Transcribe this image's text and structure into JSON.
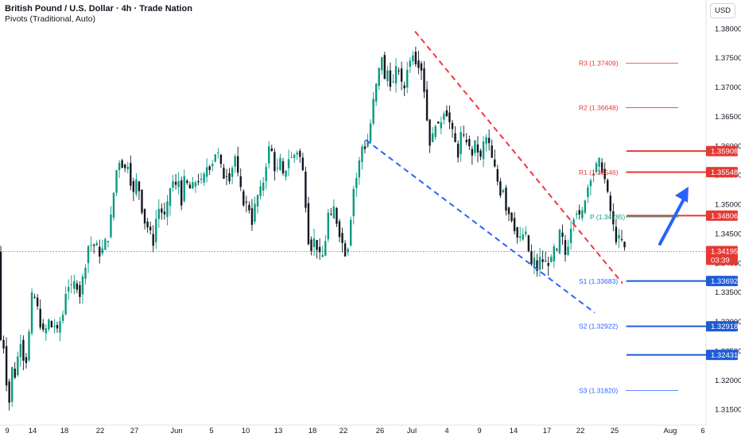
{
  "header": {
    "title": "British Pound / U.S. Dollar · 4h · Trade Nation",
    "indicator": "Pivots (Traditional, Auto)"
  },
  "currency_button": "USD",
  "colors": {
    "up": "#089981",
    "down": "#131722",
    "red_line": "#e53935",
    "blue_line": "#1e5bd6",
    "dashed_red": "#f23645",
    "dashed_blue": "#2962ff",
    "arrow": "#2962ff",
    "pivot_red_label": "#e53935",
    "pivot_blue_label": "#2962ff"
  },
  "chart_data": {
    "type": "candlestick",
    "symbol": "GBPUSD",
    "timeframe": "4h",
    "y_axis": {
      "min": 1.313,
      "max": 1.3835,
      "ticks": [
        "1.38000",
        "1.37500",
        "1.37000",
        "1.36500",
        "1.36000",
        "1.35500",
        "1.35000",
        "1.34500",
        "1.34000",
        "1.33500",
        "1.33000",
        "1.32500",
        "1.32000",
        "1.31500"
      ]
    },
    "x_axis": {
      "labels": [
        "9",
        "14",
        "18",
        "22",
        "27",
        "Jun",
        "5",
        "10",
        "13",
        "18",
        "22",
        "26",
        "Jul",
        "4",
        "9",
        "14",
        "17",
        "22",
        "25",
        "Aug",
        "6"
      ]
    },
    "price_path": [
      [
        0,
        1.322
      ],
      [
        4,
        1.329
      ],
      [
        8,
        1.3235
      ],
      [
        11,
        1.3175
      ],
      [
        14,
        1.316
      ],
      [
        18,
        1.324
      ],
      [
        22,
        1.319
      ],
      [
        26,
        1.3285
      ],
      [
        30,
        1.3245
      ],
      [
        34,
        1.3225
      ],
      [
        38,
        1.3275
      ],
      [
        42,
        1.3345
      ],
      [
        46,
        1.334
      ],
      [
        50,
        1.3315
      ],
      [
        54,
        1.3285
      ],
      [
        58,
        1.3275
      ],
      [
        62,
        1.3305
      ],
      [
        66,
        1.329
      ],
      [
        70,
        1.3295
      ],
      [
        74,
        1.328
      ],
      [
        78,
        1.3305
      ],
      [
        82,
        1.3315
      ],
      [
        86,
        1.3375
      ],
      [
        90,
        1.335
      ],
      [
        94,
        1.3365
      ],
      [
        98,
        1.3365
      ],
      [
        102,
        1.3345
      ],
      [
        106,
        1.3375
      ],
      [
        110,
        1.3405
      ],
      [
        114,
        1.344
      ],
      [
        118,
        1.3425
      ],
      [
        122,
        1.3435
      ],
      [
        126,
        1.3415
      ],
      [
        130,
        1.342
      ],
      [
        134,
        1.3435
      ],
      [
        138,
        1.3445
      ],
      [
        142,
        1.3485
      ],
      [
        146,
        1.3535
      ],
      [
        150,
        1.3575
      ],
      [
        154,
        1.3575
      ],
      [
        158,
        1.3555
      ],
      [
        162,
        1.3575
      ],
      [
        166,
        1.354
      ],
      [
        170,
        1.3515
      ],
      [
        174,
        1.3545
      ],
      [
        178,
        1.3515
      ],
      [
        182,
        1.3475
      ],
      [
        186,
        1.3465
      ],
      [
        190,
        1.3455
      ],
      [
        194,
        1.343
      ],
      [
        198,
        1.3475
      ],
      [
        202,
        1.3495
      ],
      [
        206,
        1.3485
      ],
      [
        210,
        1.3475
      ],
      [
        214,
        1.3515
      ],
      [
        218,
        1.3545
      ],
      [
        222,
        1.3525
      ],
      [
        226,
        1.3545
      ],
      [
        230,
        1.3505
      ],
      [
        234,
        1.3545
      ],
      [
        238,
        1.353
      ],
      [
        242,
        1.3525
      ],
      [
        246,
        1.3535
      ],
      [
        250,
        1.3545
      ],
      [
        254,
        1.3535
      ],
      [
        258,
        1.3545
      ],
      [
        262,
        1.3565
      ],
      [
        266,
        1.3565
      ],
      [
        270,
        1.3575
      ],
      [
        274,
        1.3595
      ],
      [
        278,
        1.3575
      ],
      [
        282,
        1.3545
      ],
      [
        286,
        1.3555
      ],
      [
        290,
        1.3545
      ],
      [
        294,
        1.3565
      ],
      [
        298,
        1.3585
      ],
      [
        302,
        1.3535
      ],
      [
        306,
        1.3515
      ],
      [
        310,
        1.3495
      ],
      [
        314,
        1.3505
      ],
      [
        318,
        1.3465
      ],
      [
        322,
        1.3495
      ],
      [
        326,
        1.3515
      ],
      [
        330,
        1.3525
      ],
      [
        334,
        1.3545
      ],
      [
        338,
        1.3585
      ],
      [
        342,
        1.3605
      ],
      [
        346,
        1.3565
      ],
      [
        350,
        1.3555
      ],
      [
        354,
        1.3575
      ],
      [
        358,
        1.3545
      ],
      [
        362,
        1.3565
      ],
      [
        366,
        1.3585
      ],
      [
        370,
        1.3575
      ],
      [
        374,
        1.3595
      ],
      [
        378,
        1.3585
      ],
      [
        382,
        1.3565
      ],
      [
        386,
        1.3505
      ],
      [
        390,
        1.3435
      ],
      [
        394,
        1.3425
      ],
      [
        398,
        1.3445
      ],
      [
        402,
        1.3415
      ],
      [
        406,
        1.3405
      ],
      [
        410,
        1.3425
      ],
      [
        414,
        1.3485
      ],
      [
        418,
        1.3475
      ],
      [
        422,
        1.3495
      ],
      [
        426,
        1.3465
      ],
      [
        430,
        1.3445
      ],
      [
        434,
        1.3425
      ],
      [
        438,
        1.341
      ],
      [
        442,
        1.3465
      ],
      [
        446,
        1.3525
      ],
      [
        450,
        1.3545
      ],
      [
        454,
        1.3575
      ],
      [
        458,
        1.3605
      ],
      [
        462,
        1.3595
      ],
      [
        466,
        1.3615
      ],
      [
        470,
        1.3665
      ],
      [
        474,
        1.3695
      ],
      [
        478,
        1.3725
      ],
      [
        482,
        1.3755
      ],
      [
        486,
        1.3705
      ],
      [
        490,
        1.3735
      ],
      [
        494,
        1.3695
      ],
      [
        498,
        1.3715
      ],
      [
        502,
        1.3745
      ],
      [
        506,
        1.3705
      ],
      [
        510,
        1.3695
      ],
      [
        514,
        1.3735
      ],
      [
        518,
        1.3745
      ],
      [
        522,
        1.3765
      ],
      [
        526,
        1.3735
      ],
      [
        530,
        1.3745
      ],
      [
        534,
        1.3715
      ],
      [
        538,
        1.3655
      ],
      [
        542,
        1.3605
      ],
      [
        546,
        1.3615
      ],
      [
        550,
        1.3645
      ],
      [
        554,
        1.3625
      ],
      [
        558,
        1.3655
      ],
      [
        562,
        1.3665
      ],
      [
        566,
        1.3645
      ],
      [
        570,
        1.3625
      ],
      [
        574,
        1.3605
      ],
      [
        578,
        1.3585
      ],
      [
        582,
        1.3625
      ],
      [
        586,
        1.3605
      ],
      [
        590,
        1.3615
      ],
      [
        594,
        1.3575
      ],
      [
        598,
        1.3605
      ],
      [
        602,
        1.3595
      ],
      [
        606,
        1.3575
      ],
      [
        610,
        1.3605
      ],
      [
        614,
        1.3615
      ],
      [
        618,
        1.3595
      ],
      [
        622,
        1.3565
      ],
      [
        626,
        1.3555
      ],
      [
        630,
        1.3515
      ],
      [
        634,
        1.3535
      ],
      [
        638,
        1.3495
      ],
      [
        642,
        1.3485
      ],
      [
        646,
        1.3475
      ],
      [
        650,
        1.3455
      ],
      [
        654,
        1.3435
      ],
      [
        658,
        1.3445
      ],
      [
        662,
        1.3455
      ],
      [
        666,
        1.3425
      ],
      [
        670,
        1.3395
      ],
      [
        674,
        1.3405
      ],
      [
        678,
        1.3385
      ],
      [
        682,
        1.3415
      ],
      [
        686,
        1.3395
      ],
      [
        690,
        1.3405
      ],
      [
        694,
        1.3395
      ],
      [
        698,
        1.3425
      ],
      [
        702,
        1.3415
      ],
      [
        706,
        1.3455
      ],
      [
        710,
        1.3435
      ],
      [
        714,
        1.3405
      ],
      [
        718,
        1.3455
      ],
      [
        722,
        1.3475
      ],
      [
        726,
        1.3495
      ],
      [
        730,
        1.3475
      ],
      [
        734,
        1.3485
      ],
      [
        738,
        1.3515
      ],
      [
        742,
        1.3535
      ],
      [
        746,
        1.3555
      ],
      [
        750,
        1.3555
      ],
      [
        754,
        1.3575
      ],
      [
        758,
        1.3565
      ],
      [
        762,
        1.3545
      ],
      [
        766,
        1.3515
      ],
      [
        770,
        1.3485
      ],
      [
        774,
        1.3455
      ],
      [
        778,
        1.3435
      ],
      [
        782,
        1.3445
      ],
      [
        786,
        1.3425
      ],
      [
        789,
        1.34195
      ]
    ],
    "current_price": {
      "value": "1.34195",
      "countdown": "03:39"
    },
    "pivots": [
      {
        "name": "R3",
        "label": "R3 (1.37409)",
        "value": 1.37409,
        "color": "red"
      },
      {
        "name": "R2",
        "label": "R2 (1.36648)",
        "value": 1.36648,
        "color": "red"
      },
      {
        "name": "R1",
        "label": "R1 (1.35546)",
        "value": 1.35546,
        "color": "red"
      },
      {
        "name": "P",
        "label": "P (1.34785)",
        "value": 1.34785,
        "color": "green"
      },
      {
        "name": "S1",
        "label": "S1 (1.33683)",
        "value": 1.33683,
        "color": "blue"
      },
      {
        "name": "S2",
        "label": "S2 (1.32922)",
        "value": 1.32922,
        "color": "blue"
      },
      {
        "name": "S3",
        "label": "S3 (1.31820)",
        "value": 1.3182,
        "color": "blue"
      }
    ],
    "horizontal_levels": [
      {
        "value": 1.35908,
        "label": "1.35908",
        "color": "red"
      },
      {
        "value": 1.35548,
        "label": "1.35548",
        "color": "red"
      },
      {
        "value": 1.34806,
        "label": "1.34806",
        "color": "red"
      },
      {
        "value": 1.33692,
        "label": "1.33692",
        "color": "blue"
      },
      {
        "value": 1.32918,
        "label": "1.32918",
        "color": "blue"
      },
      {
        "value": 1.32431,
        "label": "1.32431",
        "color": "blue"
      }
    ],
    "trendlines": [
      {
        "color": "red",
        "dashed": true,
        "from": [
          1.3795
        ],
        "to": [
          1.3365
        ]
      },
      {
        "color": "blue",
        "dashed": true,
        "from": [
          1.361
        ],
        "to": [
          1.3315
        ]
      }
    ],
    "arrow": {
      "direction": "up",
      "color": "blue"
    }
  }
}
